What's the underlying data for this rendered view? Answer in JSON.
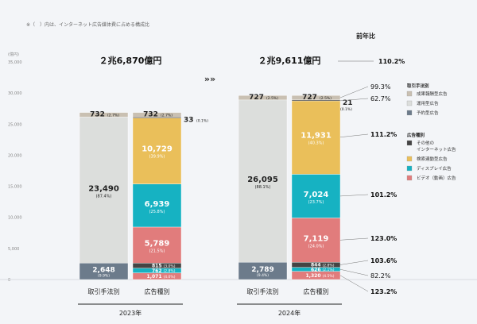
{
  "note": "※（　）内は、インターネット広告媒体費に占める構成比",
  "colors": {
    "seika": "#c9c0b2",
    "unyo": "#dcdedc",
    "yoyaku": "#6c7b8b",
    "other": "#444444",
    "search": "#eabf5a",
    "display": "#16b2c2",
    "video": "#e17c7c"
  },
  "chart_data": {
    "type": "stacked-bar",
    "ylabel": "(億円)",
    "ylim": [
      0,
      35000
    ],
    "yticks": [
      "0",
      "5,000",
      "10,000",
      "15,000",
      "20,000",
      "25,000",
      "30,000",
      "35,000"
    ],
    "yoy_header": "前年比",
    "years": [
      {
        "label": "2023年",
        "total_label": "２兆6,870億円",
        "bars": [
          {
            "label": "取引手法別",
            "segments": [
              {
                "key": "yoyaku",
                "value": 2648,
                "text": "2,648",
                "pct": "(9.9%)"
              },
              {
                "key": "unyo",
                "value": 23490,
                "text": "23,490",
                "pct": "(87.4%)"
              },
              {
                "key": "seika",
                "value": 732,
                "text": "732",
                "pct": "(2.7%)"
              }
            ]
          },
          {
            "label": "広告種別",
            "segments": [
              {
                "key": "video",
                "value": 1071,
                "text": "1,071",
                "pct": "(4.0%)"
              },
              {
                "key": "display",
                "value": 762,
                "text": "762",
                "pct": "(2.8%)"
              },
              {
                "key": "other",
                "value": 815,
                "text": "815",
                "pct": "(3.0%)"
              },
              {
                "key": "video",
                "value": 5789,
                "text": "5,789",
                "pct": "(21.5%)"
              },
              {
                "key": "display",
                "value": 6939,
                "text": "6,939",
                "pct": "(25.8%)"
              },
              {
                "key": "search",
                "value": 10729,
                "text": "10,729",
                "pct": "(39.9%)"
              },
              {
                "key": "other",
                "value": 33,
                "text": "33",
                "pct": "(0.1%)"
              },
              {
                "key": "seika",
                "value": 732,
                "text": "732",
                "pct": "(2.7%)"
              }
            ]
          }
        ]
      },
      {
        "label": "2024年",
        "total_label": "２兆9,611億円",
        "total_yoy": "110.2%",
        "bars": [
          {
            "label": "取引手法別",
            "segments": [
              {
                "key": "yoyaku",
                "value": 2789,
                "text": "2,789",
                "pct": "(9.4%)"
              },
              {
                "key": "unyo",
                "value": 26095,
                "text": "26,095",
                "pct": "(88.1%)"
              },
              {
                "key": "seika",
                "value": 727,
                "text": "727",
                "pct": "(2.5%)"
              }
            ]
          },
          {
            "label": "広告種別",
            "segments": [
              {
                "key": "video",
                "value": 1320,
                "text": "1,320",
                "pct": "(4.5%)",
                "yoy": "123.2%"
              },
              {
                "key": "display",
                "value": 626,
                "text": "626",
                "pct": "(2.1%)",
                "yoy": "82.2%"
              },
              {
                "key": "other",
                "value": 844,
                "text": "844",
                "pct": "(2.8%)",
                "yoy": "103.6%"
              },
              {
                "key": "video",
                "value": 7119,
                "text": "7,119",
                "pct": "(24.0%)",
                "yoy": "123.0%"
              },
              {
                "key": "display",
                "value": 7024,
                "text": "7,024",
                "pct": "(23.7%)",
                "yoy": "101.2%"
              },
              {
                "key": "search",
                "value": 11931,
                "text": "11,931",
                "pct": "(40.3%)",
                "yoy": "111.2%"
              },
              {
                "key": "other",
                "value": 21,
                "text": "21",
                "pct": "(0.1%)",
                "yoy": "62.7%"
              },
              {
                "key": "seika",
                "value": 727,
                "text": "727",
                "pct": "(2.5%)",
                "yoy": "99.3%"
              }
            ]
          }
        ]
      }
    ]
  },
  "legend": {
    "group1_title": "取引手法別",
    "group1": [
      {
        "key": "seika",
        "label": "成果報酬型広告"
      },
      {
        "key": "unyo",
        "label": "運用型広告"
      },
      {
        "key": "yoyaku",
        "label": "予約型広告"
      }
    ],
    "group2_title": "広告種別",
    "group2": [
      {
        "key": "other",
        "label": "その他の",
        "label2": "インターネット広告"
      },
      {
        "key": "search",
        "label": "検索連動型広告"
      },
      {
        "key": "display",
        "label": "ディスプレイ広告"
      },
      {
        "key": "video",
        "label": "ビデオ（動画）広告"
      }
    ]
  }
}
